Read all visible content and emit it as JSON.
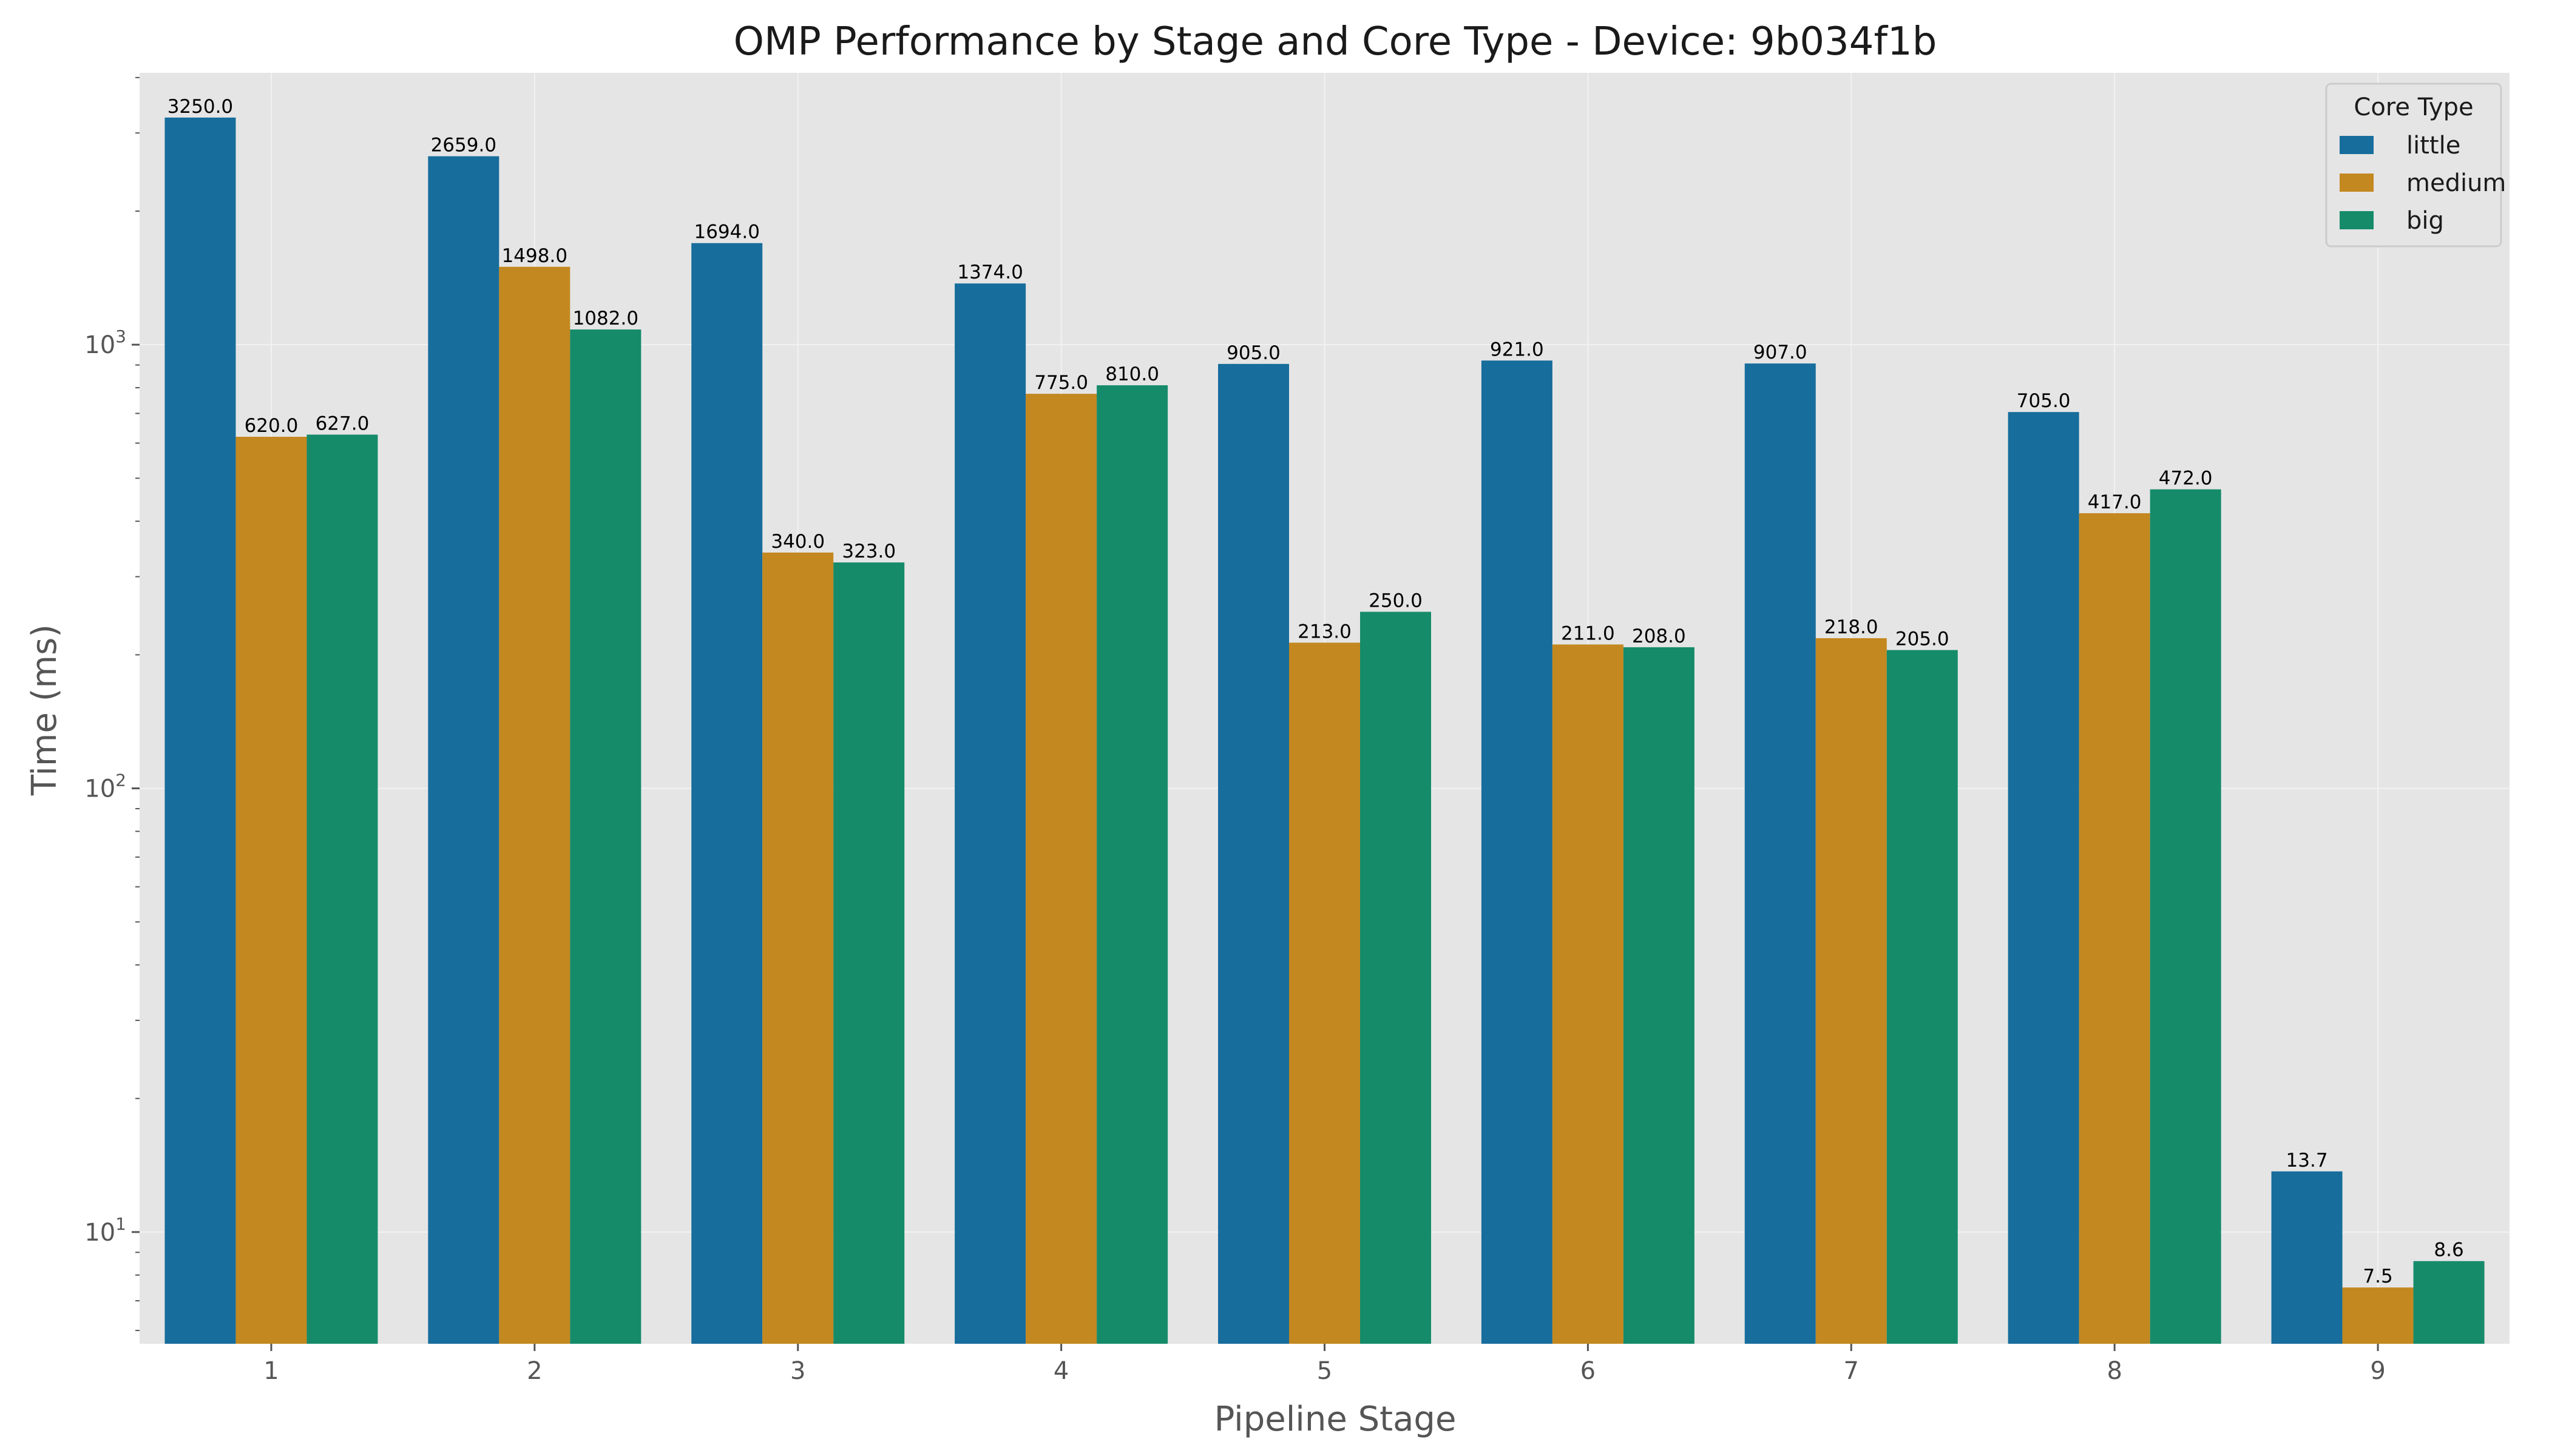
{
  "chart_data": {
    "type": "bar",
    "title": "OMP Performance by Stage and Core Type - Device: 9b034f1b",
    "xlabel": "Pipeline Stage",
    "ylabel": "Time (ms)",
    "yscale": "log",
    "ylim": [
      5.6,
      4100
    ],
    "yticks": [
      {
        "value": 10,
        "base": "10",
        "exp": "1"
      },
      {
        "value": 100,
        "base": "10",
        "exp": "2"
      },
      {
        "value": 1000,
        "base": "10",
        "exp": "3"
      }
    ],
    "categories": [
      "1",
      "2",
      "3",
      "4",
      "5",
      "6",
      "7",
      "8",
      "9"
    ],
    "series": [
      {
        "name": "little",
        "color": "#176d9c",
        "values": [
          3250.0,
          2659.0,
          1694.0,
          1374.0,
          905.0,
          921.0,
          907.0,
          705.0,
          13.7
        ]
      },
      {
        "name": "medium",
        "color": "#c38820",
        "values": [
          620.0,
          1498.0,
          340.0,
          775.0,
          213.0,
          211.0,
          218.0,
          417.0,
          7.5
        ]
      },
      {
        "name": "big",
        "color": "#158b6a",
        "values": [
          627.0,
          1082.0,
          323.0,
          810.0,
          250.0,
          208.0,
          205.0,
          472.0,
          8.6
        ]
      }
    ],
    "legend": {
      "title": "Core Type",
      "position": "top-right"
    },
    "grid": true,
    "background": "#e5e5e5"
  }
}
